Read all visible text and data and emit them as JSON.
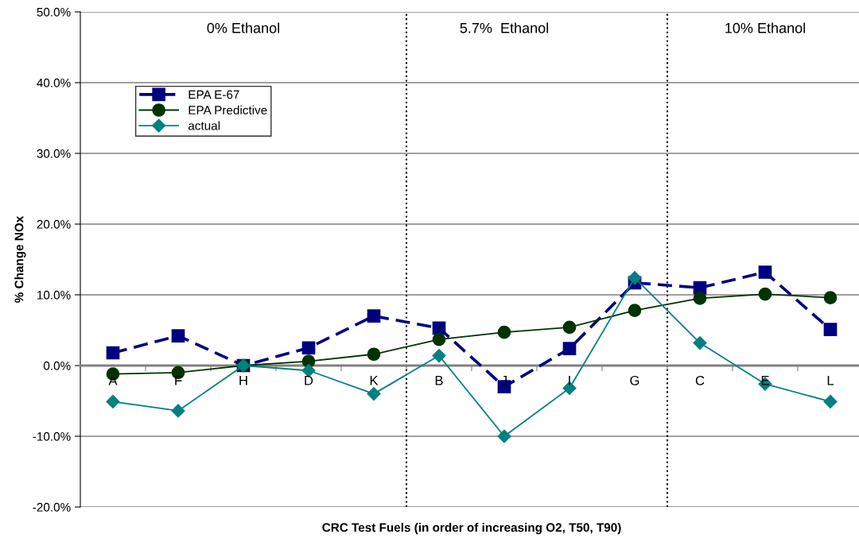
{
  "chart_data": {
    "type": "line",
    "xlabel": "CRC Test Fuels (in order of increasing O2, T50, T90)",
    "ylabel": "% Change NOx",
    "categories": [
      "A",
      "F",
      "H",
      "D",
      "K",
      "B",
      "J",
      "I",
      "G",
      "C",
      "E",
      "L"
    ],
    "series": [
      {
        "name": "EPA E-67",
        "color": "#000080",
        "marker": "square",
        "line_style": "dashed",
        "values": [
          1.8,
          4.2,
          0.0,
          2.5,
          7.0,
          5.3,
          -3.0,
          2.4,
          11.7,
          11.0,
          13.2,
          5.1
        ]
      },
      {
        "name": "EPA Predictive",
        "color": "#003300",
        "marker": "circle",
        "line_style": "solid",
        "values": [
          -1.2,
          -1.0,
          0.0,
          0.6,
          1.6,
          3.7,
          4.7,
          5.4,
          7.8,
          9.5,
          10.1,
          9.6
        ]
      },
      {
        "name": "actual",
        "color": "#008080",
        "marker": "diamond",
        "line_style": "solid",
        "values": [
          -5.1,
          -6.4,
          0.0,
          -0.7,
          -4.0,
          1.4,
          -10.0,
          -3.2,
          12.4,
          3.2,
          -2.6,
          -5.1
        ]
      }
    ],
    "ylim": [
      -20,
      50
    ],
    "yticks": [
      {
        "value": -20,
        "label": "-20.0%"
      },
      {
        "value": -10,
        "label": "-10.0%"
      },
      {
        "value": 0,
        "label": "0.0%"
      },
      {
        "value": 10,
        "label": "10.0%"
      },
      {
        "value": 20,
        "label": "20.0%"
      },
      {
        "value": 30,
        "label": "30.0%"
      },
      {
        "value": 40,
        "label": "40.0%"
      },
      {
        "value": 50,
        "label": "50.0%"
      }
    ],
    "grid": "y",
    "legend": "top left",
    "annotations": [
      "0% Ethanol",
      "5.7%  Ethanol",
      "10% Ethanol"
    ]
  }
}
